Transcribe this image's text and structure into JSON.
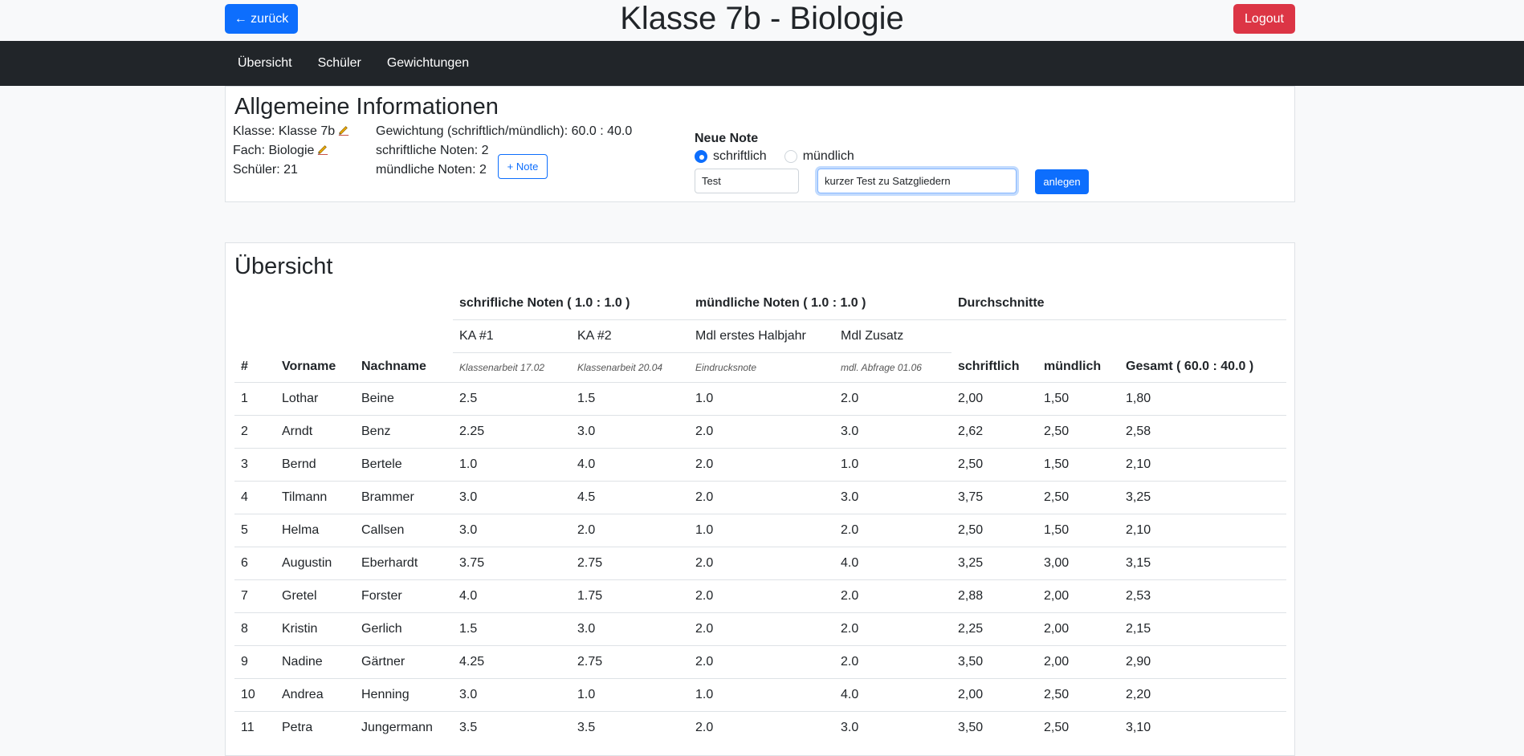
{
  "header": {
    "back_label": "← zurück",
    "title": "Klasse 7b - Biologie",
    "logout_label": "Logout"
  },
  "nav": {
    "items": [
      {
        "label": "Übersicht"
      },
      {
        "label": "Schüler"
      },
      {
        "label": "Gewichtungen"
      }
    ]
  },
  "info": {
    "heading": "Allgemeine Informationen",
    "klasse": "Klasse: Klasse 7b",
    "fach": "Fach: Biologie",
    "schueler": "Schüler: 21",
    "gewichtung": "Gewichtung (schriftlich/mündlich): 60.0 : 40.0",
    "schriftliche": "schriftliche Noten: 2",
    "muendliche": "mündliche Noten: 2",
    "add_note_label": "+ Note"
  },
  "neue_note": {
    "label": "Neue Note",
    "option_written": "schriftlich",
    "option_oral": "mündlich",
    "selected": "schriftlich",
    "title_value": "Test",
    "description_value": "kurzer Test zu Satzgliedern",
    "submit_label": "anlegen"
  },
  "overview": {
    "heading": "Übersicht",
    "group_written": "schrifliche Noten ( 1.0 : 1.0 )",
    "group_oral": "mündliche Noten ( 1.0 : 1.0 )",
    "group_avg": "Durchschnitte",
    "col_num": "#",
    "col_first": "Vorname",
    "col_last": "Nachname",
    "grades": [
      {
        "title": "KA #1",
        "desc": "Klassenarbeit 17.02"
      },
      {
        "title": "KA #2",
        "desc": "Klassenarbeit 20.04"
      },
      {
        "title": "Mdl erstes Halbjahr",
        "desc": "Eindrucksnote"
      },
      {
        "title": "Mdl Zusatz",
        "desc": "mdl. Abfrage 01.06"
      }
    ],
    "col_avg_written": "schriftlich",
    "col_avg_oral": "mündlich",
    "col_total": "Gesamt ( 60.0 : 40.0 )",
    "rows": [
      [
        "1",
        "Lothar",
        "Beine",
        "2.5",
        "1.5",
        "1.0",
        "2.0",
        "2,00",
        "1,50",
        "1,80"
      ],
      [
        "2",
        "Arndt",
        "Benz",
        "2.25",
        "3.0",
        "2.0",
        "3.0",
        "2,62",
        "2,50",
        "2,58"
      ],
      [
        "3",
        "Bernd",
        "Bertele",
        "1.0",
        "4.0",
        "2.0",
        "1.0",
        "2,50",
        "1,50",
        "2,10"
      ],
      [
        "4",
        "Tilmann",
        "Brammer",
        "3.0",
        "4.5",
        "2.0",
        "3.0",
        "3,75",
        "2,50",
        "3,25"
      ],
      [
        "5",
        "Helma",
        "Callsen",
        "3.0",
        "2.0",
        "1.0",
        "2.0",
        "2,50",
        "1,50",
        "2,10"
      ],
      [
        "6",
        "Augustin",
        "Eberhardt",
        "3.75",
        "2.75",
        "2.0",
        "4.0",
        "3,25",
        "3,00",
        "3,15"
      ],
      [
        "7",
        "Gretel",
        "Forster",
        "4.0",
        "1.75",
        "2.0",
        "2.0",
        "2,88",
        "2,00",
        "2,53"
      ],
      [
        "8",
        "Kristin",
        "Gerlich",
        "1.5",
        "3.0",
        "2.0",
        "2.0",
        "2,25",
        "2,00",
        "2,15"
      ],
      [
        "9",
        "Nadine",
        "Gärtner",
        "4.25",
        "2.75",
        "2.0",
        "2.0",
        "3,50",
        "2,00",
        "2,90"
      ],
      [
        "10",
        "Andrea",
        "Henning",
        "3.0",
        "1.0",
        "1.0",
        "4.0",
        "2,00",
        "2,50",
        "2,20"
      ],
      [
        "11",
        "Petra",
        "Jungermann",
        "3.5",
        "3.5",
        "2.0",
        "3.0",
        "3,50",
        "2,50",
        "3,10"
      ]
    ]
  },
  "colors": {
    "primary": "#0d6efd",
    "danger": "#dc3545",
    "navbar": "#212529"
  }
}
